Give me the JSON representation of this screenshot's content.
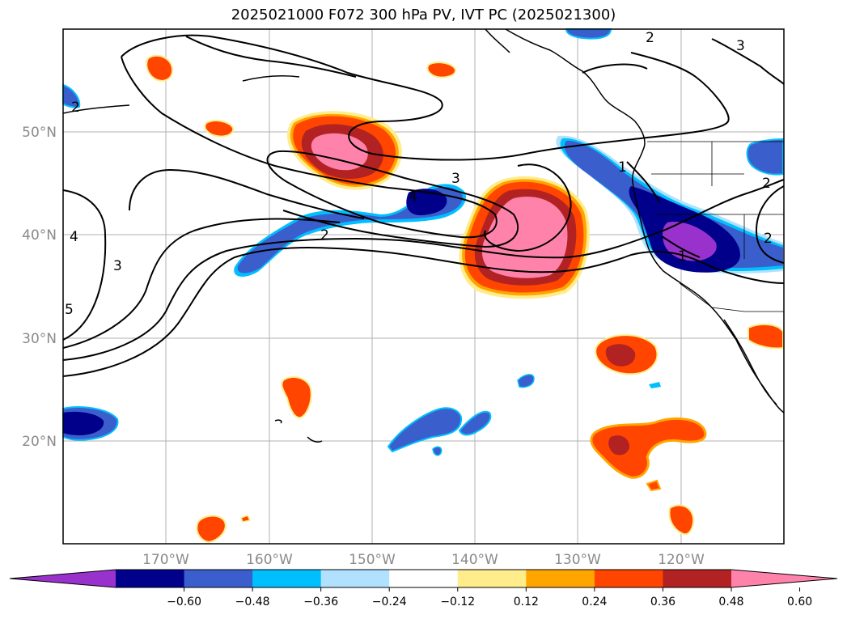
{
  "title": "2025021000 F072 300 hPa PV, IVT PC (2025021300)",
  "map": {
    "lat_labels": [
      "50°N",
      "40°N",
      "30°N",
      "20°N"
    ],
    "lon_labels": [
      "170°W",
      "160°W",
      "150°W",
      "140°W",
      "130°W",
      "120°W"
    ],
    "contour_labels": [
      "2",
      "3",
      "1",
      "2",
      "3",
      "4",
      "2",
      "3",
      "4",
      "5",
      "1",
      "2",
      "2"
    ]
  },
  "colorbar": {
    "ticks": [
      "−0.60",
      "−0.48",
      "−0.36",
      "−0.24",
      "−0.12",
      "0.12",
      "0.24",
      "0.36",
      "0.48",
      "0.60"
    ],
    "colors": [
      "#9932cc",
      "#00008b",
      "#3a5fcd",
      "#00bfff",
      "#b0e2ff",
      "#ffffff",
      "#ffec8b",
      "#ffa500",
      "#ff4500",
      "#b22222",
      "#ff82ab"
    ]
  }
}
